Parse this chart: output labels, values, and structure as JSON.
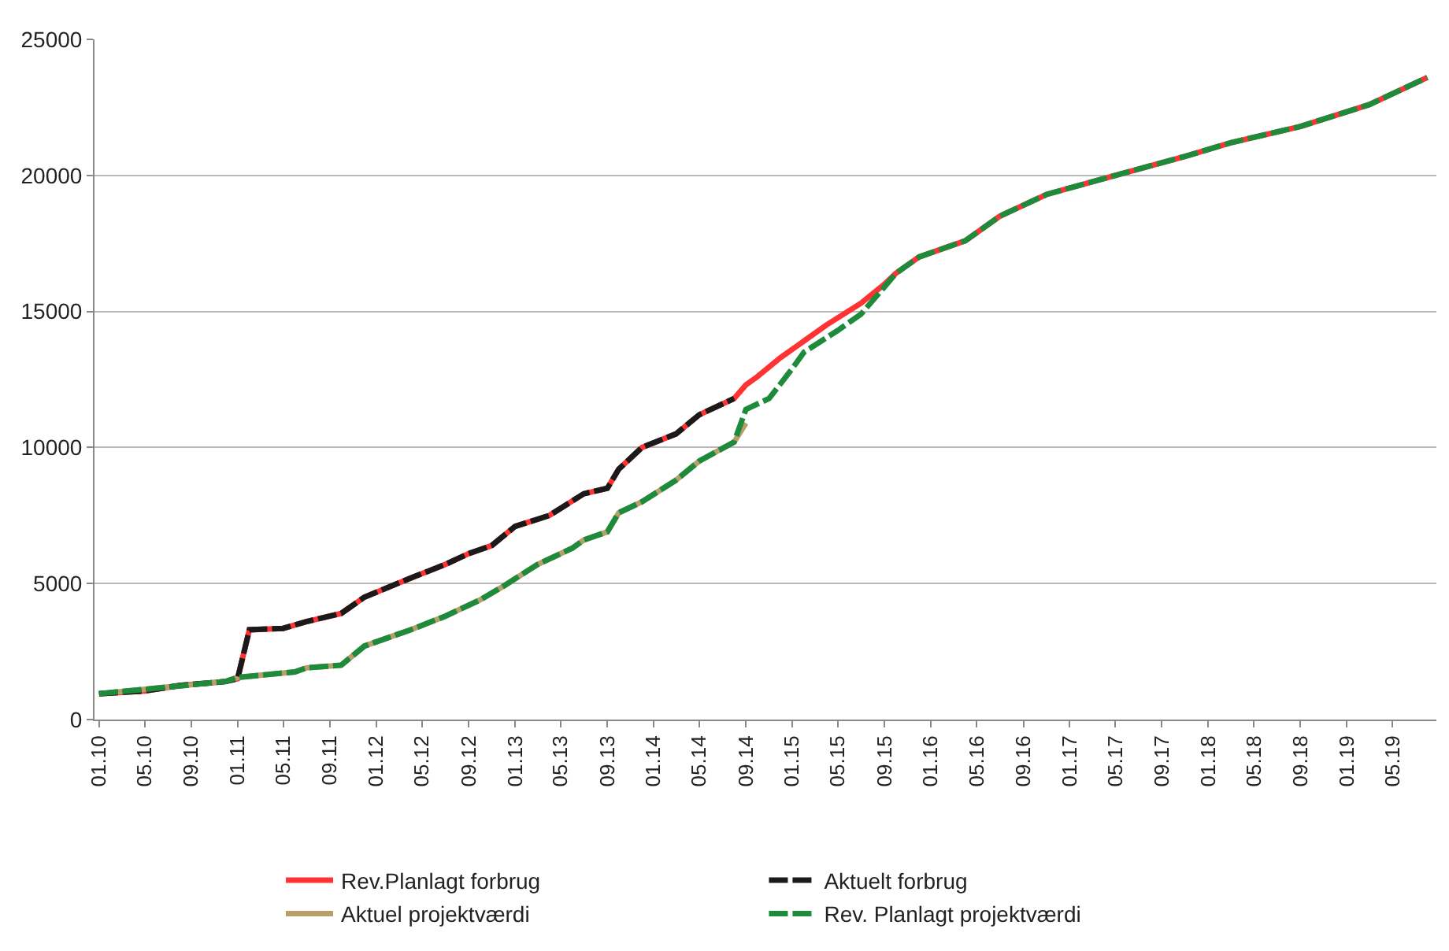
{
  "chart_data": {
    "type": "line",
    "xlim": [
      "2009-12-20",
      "2019-08-25"
    ],
    "ylim": [
      0,
      25000
    ],
    "yticks": [
      0,
      5000,
      10000,
      15000,
      20000,
      25000
    ],
    "xticks": [
      {
        "value": "2010-01",
        "label": "01.10"
      },
      {
        "value": "2010-05",
        "label": "05.10"
      },
      {
        "value": "2010-09",
        "label": "09.10"
      },
      {
        "value": "2011-01",
        "label": "01.11"
      },
      {
        "value": "2011-05",
        "label": "05.11"
      },
      {
        "value": "2011-09",
        "label": "09.11"
      },
      {
        "value": "2012-01",
        "label": "01.12"
      },
      {
        "value": "2012-05",
        "label": "05.12"
      },
      {
        "value": "2012-09",
        "label": "09.12"
      },
      {
        "value": "2013-01",
        "label": "01.13"
      },
      {
        "value": "2013-05",
        "label": "05.13"
      },
      {
        "value": "2013-09",
        "label": "09.13"
      },
      {
        "value": "2014-01",
        "label": "01.14"
      },
      {
        "value": "2014-05",
        "label": "05.14"
      },
      {
        "value": "2014-09",
        "label": "09.14"
      },
      {
        "value": "2015-01",
        "label": "01.15"
      },
      {
        "value": "2015-05",
        "label": "05.15"
      },
      {
        "value": "2015-09",
        "label": "09.15"
      },
      {
        "value": "2016-01",
        "label": "01.16"
      },
      {
        "value": "2016-05",
        "label": "05.16"
      },
      {
        "value": "2016-09",
        "label": "09.16"
      },
      {
        "value": "2017-01",
        "label": "01.17"
      },
      {
        "value": "2017-05",
        "label": "05.17"
      },
      {
        "value": "2017-09",
        "label": "09.17"
      },
      {
        "value": "2018-01",
        "label": "01.18"
      },
      {
        "value": "2018-05",
        "label": "05.18"
      },
      {
        "value": "2018-09",
        "label": "09.18"
      },
      {
        "value": "2019-01",
        "label": "01.19"
      },
      {
        "value": "2019-05",
        "label": "05.19"
      }
    ],
    "grid": "y",
    "legend": "bottom",
    "marker": "none",
    "series": [
      {
        "name": "Rev.Planlagt forbrug",
        "color": "#ff3333",
        "line_style": "solid",
        "x": [
          "2010-01",
          "2010-05",
          "2010-08",
          "2010-12",
          "2011-01",
          "2011-02",
          "2011-05",
          "2011-07",
          "2011-10",
          "2011-12",
          "2012-04",
          "2012-07",
          "2012-09",
          "2012-11",
          "2013-01",
          "2013-04",
          "2013-07",
          "2013-09",
          "2013-10",
          "2013-12",
          "2014-03",
          "2014-05",
          "2014-08",
          "2014-09",
          "2014-10",
          "2014-12",
          "2015-04",
          "2015-07",
          "2015-09",
          "2015-10",
          "2015-12",
          "2016-04",
          "2016-07",
          "2016-11",
          "2017-05",
          "2017-11",
          "2018-03",
          "2018-09",
          "2019-03",
          "2019-08"
        ],
        "values": [
          950,
          1050,
          1250,
          1400,
          1500,
          3300,
          3350,
          3600,
          3900,
          4500,
          5200,
          5700,
          6100,
          6400,
          7100,
          7500,
          8300,
          8500,
          9200,
          10000,
          10500,
          11200,
          11800,
          12300,
          12600,
          13300,
          14500,
          15300,
          16000,
          16400,
          17000,
          17600,
          18500,
          19300,
          20000,
          20700,
          21200,
          21800,
          22600,
          23600
        ]
      },
      {
        "name": "Aktuelt forbrug",
        "color": "#1a1a1a",
        "line_style": "dashed",
        "x": [
          "2010-01",
          "2010-05",
          "2010-08",
          "2010-12",
          "2011-01",
          "2011-02",
          "2011-05",
          "2011-07",
          "2011-10",
          "2011-12",
          "2012-04",
          "2012-07",
          "2012-09",
          "2012-11",
          "2013-01",
          "2013-04",
          "2013-07",
          "2013-09",
          "2013-10",
          "2013-12",
          "2014-03",
          "2014-05",
          "2014-08"
        ],
        "values": [
          950,
          1050,
          1250,
          1400,
          1500,
          3300,
          3350,
          3600,
          3900,
          4500,
          5200,
          5700,
          6100,
          6400,
          7100,
          7500,
          8300,
          8500,
          9200,
          10000,
          10500,
          11200,
          11800
        ]
      },
      {
        "name": "Aktuel projektværdi",
        "color": "#b89f6a",
        "line_style": "solid",
        "x": [
          "2010-01",
          "2010-12",
          "2011-01",
          "2011-06",
          "2011-07",
          "2011-10",
          "2011-12",
          "2012-04",
          "2012-07",
          "2012-10",
          "2012-12",
          "2013-03",
          "2013-06",
          "2013-07",
          "2013-09",
          "2013-10",
          "2013-12",
          "2014-03",
          "2014-05",
          "2014-08",
          "2014-09"
        ],
        "values": [
          950,
          1400,
          1550,
          1750,
          1900,
          2000,
          2700,
          3300,
          3800,
          4400,
          4900,
          5700,
          6300,
          6600,
          6900,
          7600,
          8000,
          8800,
          9500,
          10200,
          10900
        ]
      },
      {
        "name": "Rev. Planlagt projektværdi",
        "color": "#1e8a3c",
        "line_style": "dashed",
        "x": [
          "2010-01",
          "2010-12",
          "2011-01",
          "2011-06",
          "2011-07",
          "2011-10",
          "2011-12",
          "2012-04",
          "2012-07",
          "2012-10",
          "2012-12",
          "2013-03",
          "2013-06",
          "2013-07",
          "2013-09",
          "2013-10",
          "2013-12",
          "2014-03",
          "2014-05",
          "2014-08",
          "2014-09",
          "2014-11",
          "2015-01",
          "2015-02",
          "2015-05",
          "2015-07",
          "2015-09",
          "2015-10",
          "2015-12",
          "2016-04",
          "2016-07",
          "2016-11",
          "2017-05",
          "2017-11",
          "2018-03",
          "2018-09",
          "2019-03",
          "2019-08"
        ],
        "values": [
          950,
          1400,
          1550,
          1750,
          1900,
          2000,
          2700,
          3300,
          3800,
          4400,
          4900,
          5700,
          6300,
          6600,
          6900,
          7600,
          8000,
          8800,
          9500,
          10200,
          11400,
          11800,
          12900,
          13500,
          14300,
          14900,
          15900,
          16400,
          17000,
          17600,
          18500,
          19300,
          20000,
          20700,
          21200,
          21800,
          22600,
          23600
        ]
      }
    ]
  }
}
